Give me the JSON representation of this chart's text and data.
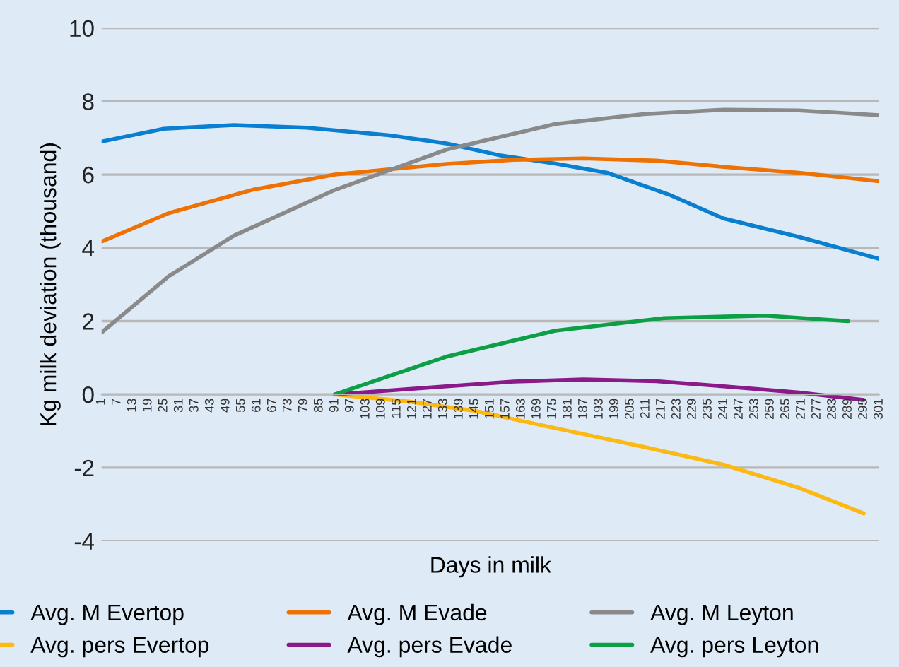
{
  "chart_data": {
    "type": "line",
    "xlabel": "Days in milk",
    "ylabel": "Kg milk deviation (thousand)",
    "xlim": [
      1,
      301
    ],
    "xticks": [
      1,
      7,
      13,
      19,
      25,
      31,
      37,
      43,
      49,
      55,
      61,
      67,
      73,
      79,
      85,
      91,
      97,
      103,
      109,
      115,
      121,
      127,
      133,
      139,
      145,
      151,
      157,
      163,
      169,
      175,
      181,
      187,
      193,
      199,
      205,
      211,
      217,
      223,
      229,
      235,
      241,
      247,
      253,
      259,
      265,
      271,
      277,
      283,
      289,
      295,
      301
    ],
    "ylim": [
      -4,
      10
    ],
    "yticks": [
      -4,
      -2,
      0,
      2,
      4,
      6,
      8,
      10
    ],
    "grid": "y",
    "legend": "bottom",
    "marker": "none",
    "line_style": "solid",
    "series": [
      {
        "name": "Avg. M Evertop",
        "color": "#0a7fcf",
        "x": [
          1,
          25,
          52,
          80,
          112,
          134,
          155,
          176,
          196,
          220,
          241,
          270,
          301
        ],
        "values": [
          6.9,
          7.25,
          7.35,
          7.28,
          7.07,
          6.85,
          6.52,
          6.3,
          6.05,
          5.45,
          4.8,
          4.3,
          3.7
        ]
      },
      {
        "name": "Avg. M Evade",
        "color": "#ee7203",
        "x": [
          1,
          27,
          59,
          91,
          134,
          160,
          187,
          215,
          241,
          270,
          301
        ],
        "values": [
          4.17,
          4.95,
          5.58,
          6.0,
          6.29,
          6.4,
          6.44,
          6.38,
          6.21,
          6.05,
          5.82
        ]
      },
      {
        "name": "Avg. M Leyton",
        "color": "#8a8a8a",
        "x": [
          1,
          27,
          52,
          91,
          134,
          176,
          210,
          241,
          270,
          301
        ],
        "values": [
          1.69,
          3.23,
          4.33,
          5.58,
          6.68,
          7.38,
          7.65,
          7.77,
          7.75,
          7.62
        ]
      },
      {
        "name": "Avg. pers Evertop",
        "color": "#fdb913",
        "x": [
          91,
          120,
          145,
          176,
          208,
          241,
          270,
          295
        ],
        "values": [
          0,
          -0.2,
          -0.45,
          -0.92,
          -1.4,
          -1.92,
          -2.55,
          -3.25
        ]
      },
      {
        "name": "Avg. pers Evade",
        "color": "#8b1a89",
        "x": [
          91,
          134,
          160,
          187,
          215,
          241,
          270,
          295
        ],
        "values": [
          0,
          0.22,
          0.35,
          0.41,
          0.36,
          0.22,
          0.05,
          -0.15
        ]
      },
      {
        "name": "Avg. pers Leyton",
        "color": "#0d9f45",
        "x": [
          91,
          134,
          176,
          218,
          257,
          289
        ],
        "values": [
          0,
          1.03,
          1.74,
          2.08,
          2.15,
          2.0
        ]
      }
    ]
  }
}
